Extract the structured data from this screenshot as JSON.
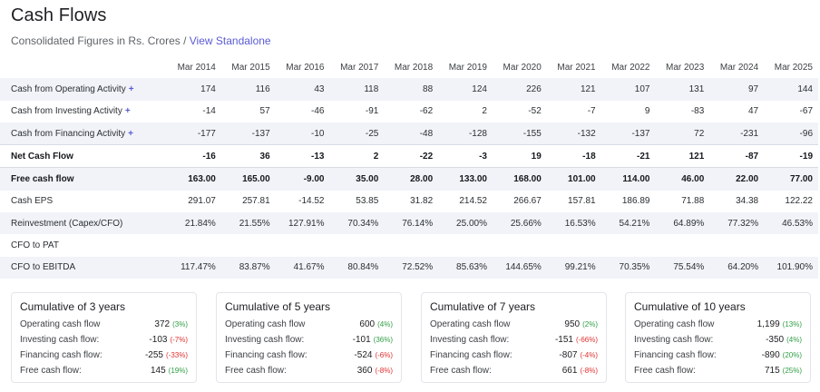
{
  "header": {
    "title": "Cash Flows",
    "subtitle_prefix": "Consolidated Figures in Rs. Crores / ",
    "subtitle_link": "View Standalone"
  },
  "table": {
    "years": [
      "Mar 2014",
      "Mar 2015",
      "Mar 2016",
      "Mar 2017",
      "Mar 2018",
      "Mar 2019",
      "Mar 2020",
      "Mar 2021",
      "Mar 2022",
      "Mar 2023",
      "Mar 2024",
      "Mar 2025"
    ],
    "rows": [
      {
        "label": "Cash from Operating Activity",
        "plus": "+",
        "values": [
          "174",
          "116",
          "43",
          "118",
          "88",
          "124",
          "226",
          "121",
          "107",
          "131",
          "97",
          "144"
        ]
      },
      {
        "label": "Cash from Investing Activity",
        "plus": "+",
        "values": [
          "-14",
          "57",
          "-46",
          "-91",
          "-62",
          "2",
          "-52",
          "-7",
          "9",
          "-83",
          "47",
          "-67"
        ]
      },
      {
        "label": "Cash from Financing Activity",
        "plus": "+",
        "values": [
          "-177",
          "-137",
          "-10",
          "-25",
          "-48",
          "-128",
          "-155",
          "-132",
          "-137",
          "72",
          "-231",
          "-96"
        ]
      },
      {
        "label": "Net Cash Flow",
        "plus": "",
        "values": [
          "-16",
          "36",
          "-13",
          "2",
          "-22",
          "-3",
          "19",
          "-18",
          "-21",
          "121",
          "-87",
          "-19"
        ]
      },
      {
        "label": "Free cash flow",
        "plus": "",
        "values": [
          "163.00",
          "165.00",
          "-9.00",
          "35.00",
          "28.00",
          "133.00",
          "168.00",
          "101.00",
          "114.00",
          "46.00",
          "22.00",
          "77.00"
        ]
      },
      {
        "label": "Cash EPS",
        "plus": "",
        "values": [
          "291.07",
          "257.81",
          "-14.52",
          "53.85",
          "31.82",
          "214.52",
          "266.67",
          "157.81",
          "186.89",
          "71.88",
          "34.38",
          "122.22"
        ]
      },
      {
        "label": "Reinvestment (Capex/CFO)",
        "plus": "",
        "values": [
          "21.84%",
          "21.55%",
          "127.91%",
          "70.34%",
          "76.14%",
          "25.00%",
          "25.66%",
          "16.53%",
          "54.21%",
          "64.89%",
          "77.32%",
          "46.53%"
        ]
      },
      {
        "label": "CFO to PAT",
        "plus": "",
        "values": [
          "",
          "",
          "",
          "",
          "",
          "",
          "",
          "",
          "",
          "",
          "",
          ""
        ]
      },
      {
        "label": "CFO to EBITDA",
        "plus": "",
        "values": [
          "117.47%",
          "83.87%",
          "41.67%",
          "80.84%",
          "72.52%",
          "85.63%",
          "144.65%",
          "99.21%",
          "70.35%",
          "75.54%",
          "64.20%",
          "101.90%"
        ]
      }
    ]
  },
  "cards": [
    {
      "title": "Cumulative of 3 years",
      "rows": [
        {
          "label": "Operating cash flow",
          "value": "372",
          "pct": "(3%)",
          "tone": "pos"
        },
        {
          "label": "Investing cash flow:",
          "value": "-103",
          "pct": "(-7%)",
          "tone": "neg"
        },
        {
          "label": "Financing cash flow:",
          "value": "-255",
          "pct": "(-33%)",
          "tone": "neg"
        },
        {
          "label": "Free cash flow:",
          "value": "145",
          "pct": "(19%)",
          "tone": "pos"
        }
      ]
    },
    {
      "title": "Cumulative of 5 years",
      "rows": [
        {
          "label": "Operating cash flow",
          "value": "600",
          "pct": "(4%)",
          "tone": "pos"
        },
        {
          "label": "Investing cash flow:",
          "value": "-101",
          "pct": "(36%)",
          "tone": "pos"
        },
        {
          "label": "Financing cash flow:",
          "value": "-524",
          "pct": "(-6%)",
          "tone": "neg"
        },
        {
          "label": "Free cash flow:",
          "value": "360",
          "pct": "(-8%)",
          "tone": "neg"
        }
      ]
    },
    {
      "title": "Cumulative of 7 years",
      "rows": [
        {
          "label": "Operating cash flow",
          "value": "950",
          "pct": "(2%)",
          "tone": "pos"
        },
        {
          "label": "Investing cash flow:",
          "value": "-151",
          "pct": "(-66%)",
          "tone": "neg"
        },
        {
          "label": "Financing cash flow:",
          "value": "-807",
          "pct": "(-4%)",
          "tone": "neg"
        },
        {
          "label": "Free cash flow:",
          "value": "661",
          "pct": "(-8%)",
          "tone": "neg"
        }
      ]
    },
    {
      "title": "Cumulative of 10 years",
      "rows": [
        {
          "label": "Operating cash flow",
          "value": "1,199",
          "pct": "(13%)",
          "tone": "pos"
        },
        {
          "label": "Investing cash flow:",
          "value": "-350",
          "pct": "(4%)",
          "tone": "pos"
        },
        {
          "label": "Financing cash flow:",
          "value": "-890",
          "pct": "(20%)",
          "tone": "pos"
        },
        {
          "label": "Free cash flow:",
          "value": "715",
          "pct": "(25%)",
          "tone": "pos"
        }
      ]
    }
  ],
  "colors": {
    "accent": "#5b5bd6",
    "positive": "#2f9e44",
    "negative": "#e03131",
    "row_shade": "#f1f3f8"
  }
}
